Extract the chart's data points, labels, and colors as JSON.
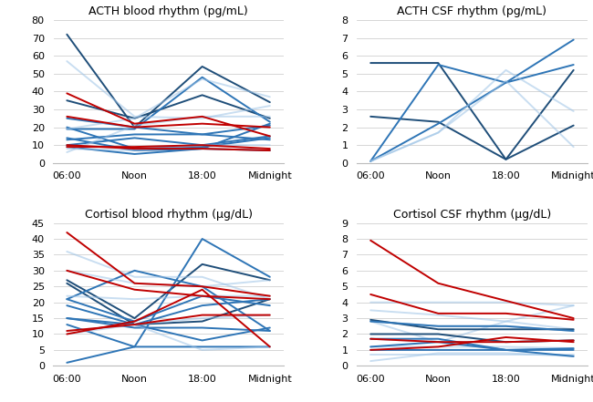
{
  "x_labels": [
    "06:00",
    "Noon",
    "18:00",
    "Midnight"
  ],
  "x_ticks": [
    0,
    1,
    2,
    3
  ],
  "acth_blood": {
    "title": "ACTH blood rhythm (pg/mL)",
    "ylim": [
      0,
      80
    ],
    "yticks": [
      0,
      10,
      20,
      30,
      40,
      50,
      60,
      70,
      80
    ],
    "lines": [
      {
        "color": "#1f4e79",
        "alpha": 1.0,
        "data": [
          72,
          20,
          54,
          34
        ]
      },
      {
        "color": "#1f4e79",
        "alpha": 1.0,
        "data": [
          35,
          25,
          38,
          25
        ]
      },
      {
        "color": "#2e75b6",
        "alpha": 1.0,
        "data": [
          25,
          20,
          16,
          21
        ]
      },
      {
        "color": "#2e75b6",
        "alpha": 1.0,
        "data": [
          20,
          8,
          9,
          14
        ]
      },
      {
        "color": "#2e75b6",
        "alpha": 1.0,
        "data": [
          19,
          19,
          48,
          23
        ]
      },
      {
        "color": "#2e75b6",
        "alpha": 1.0,
        "data": [
          14,
          7,
          8,
          7
        ]
      },
      {
        "color": "#2e75b6",
        "alpha": 1.0,
        "data": [
          13,
          16,
          16,
          13
        ]
      },
      {
        "color": "#2e75b6",
        "alpha": 1.0,
        "data": [
          10,
          14,
          10,
          15
        ]
      },
      {
        "color": "#2e75b6",
        "alpha": 1.0,
        "data": [
          9,
          5,
          8,
          22
        ]
      },
      {
        "color": "#9dc3e6",
        "alpha": 0.55,
        "data": [
          57,
          26,
          25,
          32
        ]
      },
      {
        "color": "#9dc3e6",
        "alpha": 0.55,
        "data": [
          19,
          25,
          47,
          37
        ]
      },
      {
        "color": "#9dc3e6",
        "alpha": 0.55,
        "data": [
          8,
          7,
          10,
          10
        ]
      },
      {
        "color": "#9dc3e6",
        "alpha": 0.55,
        "data": [
          6,
          21,
          26,
          26
        ]
      },
      {
        "color": "#c00000",
        "alpha": 1.0,
        "data": [
          39,
          22,
          26,
          15
        ]
      },
      {
        "color": "#c00000",
        "alpha": 1.0,
        "data": [
          26,
          20,
          22,
          20
        ]
      },
      {
        "color": "#c00000",
        "alpha": 1.0,
        "data": [
          10,
          8,
          8,
          7
        ]
      },
      {
        "color": "#c00000",
        "alpha": 1.0,
        "data": [
          9,
          9,
          10,
          8
        ]
      }
    ]
  },
  "acth_csf": {
    "title": "ACTH CSF rhythm (pg/mL)",
    "ylim": [
      0,
      8
    ],
    "yticks": [
      0,
      1,
      2,
      3,
      4,
      5,
      6,
      7,
      8
    ],
    "lines": [
      {
        "color": "#1f4e79",
        "alpha": 1.0,
        "data": [
          5.6,
          5.6,
          0.2,
          5.2
        ]
      },
      {
        "color": "#1f4e79",
        "alpha": 1.0,
        "data": [
          2.6,
          2.3,
          0.2,
          2.1
        ]
      },
      {
        "color": "#2e75b6",
        "alpha": 1.0,
        "data": [
          0.1,
          5.5,
          4.5,
          5.5
        ]
      },
      {
        "color": "#2e75b6",
        "alpha": 1.0,
        "data": [
          0.1,
          2.2,
          4.5,
          6.9
        ]
      },
      {
        "color": "#9dc3e6",
        "alpha": 0.55,
        "data": [
          0.1,
          1.7,
          5.2,
          2.9
        ]
      },
      {
        "color": "#9dc3e6",
        "alpha": 0.55,
        "data": [
          0.1,
          1.7,
          4.6,
          0.9
        ]
      }
    ]
  },
  "cortisol_blood": {
    "title": "Cortisol blood rhythm (μg/dL)",
    "ylim": [
      0,
      45
    ],
    "yticks": [
      0,
      5,
      10,
      15,
      20,
      25,
      30,
      35,
      40,
      45
    ],
    "lines": [
      {
        "color": "#1f4e79",
        "alpha": 1.0,
        "data": [
          27,
          15,
          32,
          27
        ]
      },
      {
        "color": "#1f4e79",
        "alpha": 1.0,
        "data": [
          26,
          13,
          14,
          21
        ]
      },
      {
        "color": "#2e75b6",
        "alpha": 1.0,
        "data": [
          21,
          30,
          25,
          11
        ]
      },
      {
        "color": "#2e75b6",
        "alpha": 1.0,
        "data": [
          21,
          14,
          22,
          19
        ]
      },
      {
        "color": "#2e75b6",
        "alpha": 1.0,
        "data": [
          19,
          13,
          19,
          21
        ]
      },
      {
        "color": "#2e75b6",
        "alpha": 1.0,
        "data": [
          15,
          13,
          8,
          12
        ]
      },
      {
        "color": "#2e75b6",
        "alpha": 1.0,
        "data": [
          15,
          12,
          12,
          11
        ]
      },
      {
        "color": "#2e75b6",
        "alpha": 1.0,
        "data": [
          13,
          6,
          6,
          6
        ]
      },
      {
        "color": "#2e75b6",
        "alpha": 1.0,
        "data": [
          1,
          6,
          40,
          28
        ]
      },
      {
        "color": "#9dc3e6",
        "alpha": 0.55,
        "data": [
          36,
          28,
          28,
          21
        ]
      },
      {
        "color": "#9dc3e6",
        "alpha": 0.55,
        "data": [
          30,
          26,
          25,
          27
        ]
      },
      {
        "color": "#9dc3e6",
        "alpha": 0.55,
        "data": [
          22,
          21,
          22,
          22
        ]
      },
      {
        "color": "#9dc3e6",
        "alpha": 0.55,
        "data": [
          11,
          13,
          15,
          16
        ]
      },
      {
        "color": "#9dc3e6",
        "alpha": 0.55,
        "data": [
          10,
          13,
          5,
          6
        ]
      },
      {
        "color": "#c00000",
        "alpha": 1.0,
        "data": [
          42,
          26,
          25,
          22
        ]
      },
      {
        "color": "#c00000",
        "alpha": 1.0,
        "data": [
          30,
          24,
          22,
          21
        ]
      },
      {
        "color": "#c00000",
        "alpha": 1.0,
        "data": [
          11,
          13,
          16,
          16
        ]
      },
      {
        "color": "#c00000",
        "alpha": 1.0,
        "data": [
          10,
          14,
          24,
          6
        ]
      }
    ]
  },
  "cortisol_csf": {
    "title": "Cortisol CSF rhythm (μg/dL)",
    "ylim": [
      0,
      9
    ],
    "yticks": [
      0,
      1,
      2,
      3,
      4,
      5,
      6,
      7,
      8,
      9
    ],
    "lines": [
      {
        "color": "#9dc3e6",
        "alpha": 0.55,
        "data": [
          4.0,
          4.0,
          4.0,
          3.8
        ]
      },
      {
        "color": "#9dc3e6",
        "alpha": 0.55,
        "data": [
          3.5,
          3.2,
          2.8,
          3.8
        ]
      },
      {
        "color": "#9dc3e6",
        "alpha": 0.55,
        "data": [
          2.8,
          2.5,
          2.5,
          2.2
        ]
      },
      {
        "color": "#9dc3e6",
        "alpha": 0.55,
        "data": [
          2.8,
          1.5,
          2.8,
          2.3
        ]
      },
      {
        "color": "#9dc3e6",
        "alpha": 0.55,
        "data": [
          1.7,
          1.5,
          1.5,
          1.6
        ]
      },
      {
        "color": "#9dc3e6",
        "alpha": 0.55,
        "data": [
          1.2,
          1.2,
          1.2,
          1.1
        ]
      },
      {
        "color": "#9dc3e6",
        "alpha": 0.55,
        "data": [
          0.7,
          0.7,
          0.7,
          0.7
        ]
      },
      {
        "color": "#9dc3e6",
        "alpha": 0.55,
        "data": [
          0.3,
          0.8,
          0.8,
          0.6
        ]
      },
      {
        "color": "#1f4e79",
        "alpha": 1.0,
        "data": [
          2.9,
          2.3,
          2.3,
          2.3
        ]
      },
      {
        "color": "#1f4e79",
        "alpha": 1.0,
        "data": [
          2.0,
          2.0,
          1.5,
          1.6
        ]
      },
      {
        "color": "#2e75b6",
        "alpha": 1.0,
        "data": [
          2.8,
          2.5,
          2.5,
          2.2
        ]
      },
      {
        "color": "#2e75b6",
        "alpha": 1.0,
        "data": [
          1.7,
          1.7,
          1.0,
          1.1
        ]
      },
      {
        "color": "#2e75b6",
        "alpha": 1.0,
        "data": [
          1.2,
          1.5,
          1.0,
          1.0
        ]
      },
      {
        "color": "#2e75b6",
        "alpha": 1.0,
        "data": [
          1.0,
          1.0,
          1.0,
          0.6
        ]
      },
      {
        "color": "#c00000",
        "alpha": 1.0,
        "data": [
          7.9,
          5.2,
          4.1,
          3.0
        ]
      },
      {
        "color": "#c00000",
        "alpha": 1.0,
        "data": [
          4.5,
          3.3,
          3.3,
          2.9
        ]
      },
      {
        "color": "#c00000",
        "alpha": 1.0,
        "data": [
          1.7,
          1.5,
          1.5,
          1.6
        ]
      },
      {
        "color": "#c00000",
        "alpha": 1.0,
        "data": [
          1.0,
          1.2,
          1.8,
          1.5
        ]
      }
    ]
  },
  "bg_color": "#ffffff",
  "plot_bg": "#ffffff",
  "grid_color": "#d0d0d0",
  "title_fontsize": 9,
  "tick_fontsize": 8,
  "linewidth": 1.4
}
